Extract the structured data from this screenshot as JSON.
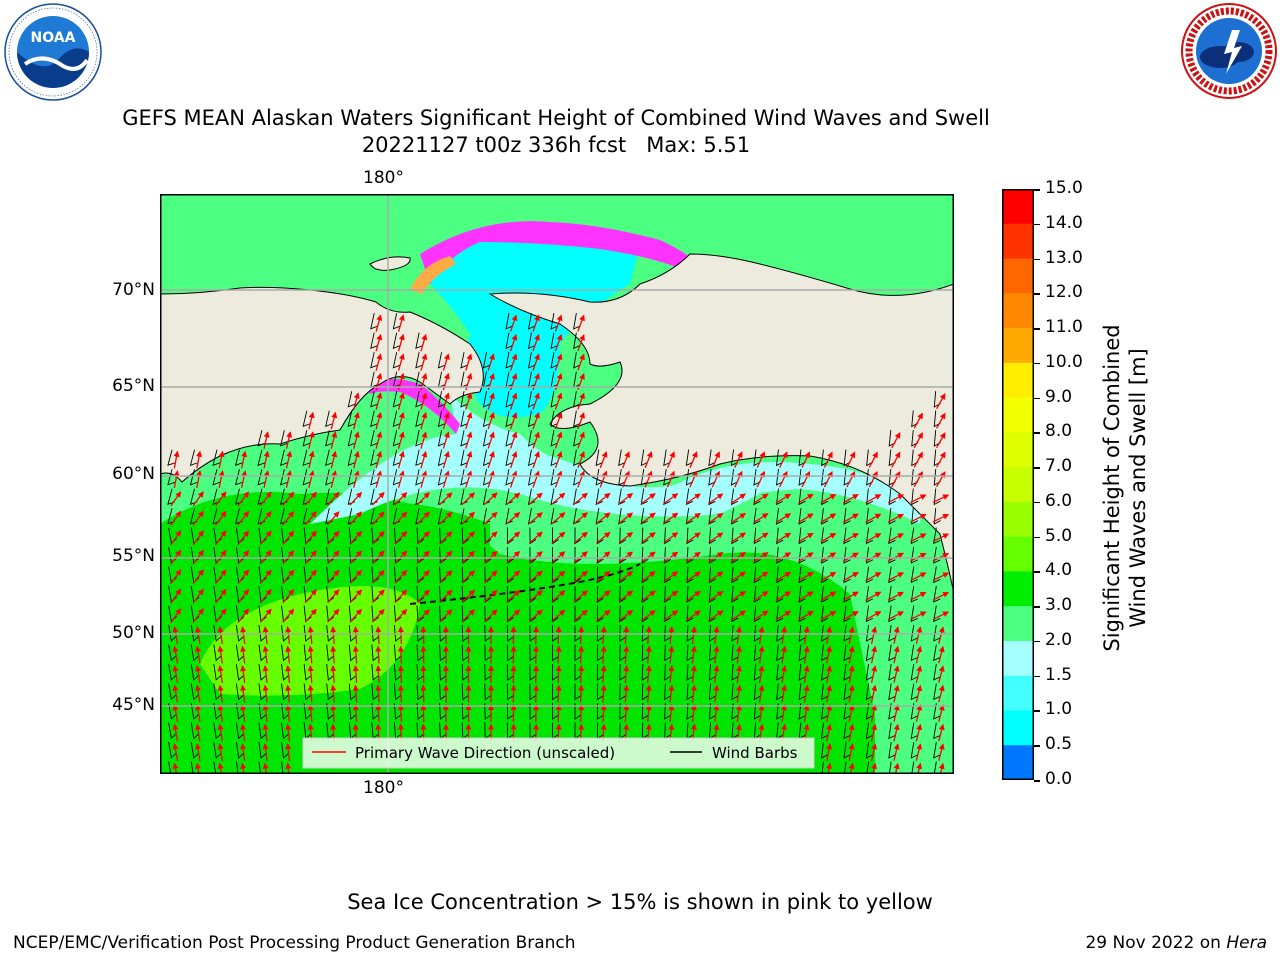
{
  "title": {
    "line1": "GEFS MEAN Alaskan Waters Significant Height of Combined Wind Waves and Swell",
    "line2": "20221127 t00z 336h fcst   Max: 5.51"
  },
  "logos": {
    "left": {
      "name": "NOAA",
      "ring_text": "NATIONAL OCEANIC AND ATMOSPHERIC ADMINISTRATION · U.S. DEPARTMENT OF COMMERCE"
    },
    "right": {
      "name": "NATIONAL WEATHER SERVICE"
    }
  },
  "map": {
    "lat_labels": [
      "70°N",
      "65°N",
      "60°N",
      "55°N",
      "50°N",
      "45°N"
    ],
    "lon_label_top": "180°",
    "lon_label_bottom": "180°",
    "colors": {
      "land": "#ecebdd",
      "ocean_edge": "#3aff8c",
      "light_green": "#4dff80",
      "green": "#00e600",
      "yellow_green": "#66ff00",
      "cyan": "#00ffff",
      "pale_cyan": "#a6ffff",
      "ice_pink": "#ff33ff",
      "ice_orange": "#ffaa44"
    }
  },
  "legend": {
    "wave_label": "Primary Wave Direction (unscaled)",
    "wind_label": "Wind Barbs"
  },
  "colorbar": {
    "ticks": [
      "15.0",
      "14.0",
      "13.0",
      "12.0",
      "11.0",
      "10.0",
      "9.0",
      "8.0",
      "7.0",
      "6.0",
      "5.0",
      "4.0",
      "3.0",
      "2.0",
      "1.5",
      "1.0",
      "0.5",
      "0.0"
    ],
    "colors": [
      "#ff0000",
      "#ff3300",
      "#ff6600",
      "#ff8800",
      "#ffaa00",
      "#ffee00",
      "#f2ff00",
      "#ddff00",
      "#c8ff00",
      "#99ff00",
      "#66ff00",
      "#00ee00",
      "#4dff80",
      "#a6ffff",
      "#44ffff",
      "#00ffff",
      "#0077ff",
      "#0000ff"
    ],
    "label_line1": "Significant Height of Combined",
    "label_line2": "Wind Waves and Swell [m]"
  },
  "note": "Sea Ice Concentration > 15% is shown in pink to yellow",
  "footer": {
    "left": "NCEP/EMC/Verification Post Processing Product Generation Branch",
    "right_prefix": "29 Nov 2022 on ",
    "right_host": "Hera"
  }
}
